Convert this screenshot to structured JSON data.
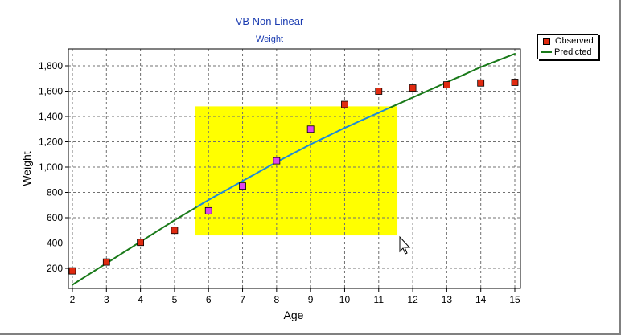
{
  "chart_data": {
    "type": "scatter",
    "title": "VB Non Linear",
    "subtitle": "Weight",
    "xlabel": "Age",
    "ylabel": "Weight",
    "xlim": [
      2,
      15
    ],
    "ylim": [
      100,
      1900
    ],
    "x_ticks": [
      2,
      3,
      4,
      5,
      6,
      7,
      8,
      9,
      10,
      11,
      12,
      13,
      14,
      15
    ],
    "y_ticks": [
      200,
      400,
      600,
      800,
      1000,
      1200,
      1400,
      1600,
      1800
    ],
    "y_tick_labels": [
      "200",
      "400",
      "600",
      "800",
      "1,000",
      "1,200",
      "1,400",
      "1,600",
      "1,800"
    ],
    "grid": true,
    "legend_position": "top-right",
    "series": [
      {
        "name": "Observed",
        "kind": "markers",
        "color": "#e02a10",
        "x": [
          2,
          3,
          4,
          5,
          6,
          7,
          8,
          9,
          10,
          11,
          12,
          13,
          14,
          15
        ],
        "y": [
          180,
          250,
          405,
          500,
          655,
          850,
          1050,
          1300,
          1495,
          1600,
          1625,
          1650,
          1665,
          1670
        ]
      },
      {
        "name": "Predicted",
        "kind": "line",
        "color": "#1a7a1a",
        "x": [
          2,
          3,
          4,
          5,
          6,
          7,
          8,
          9,
          10,
          11,
          12,
          13,
          14,
          15
        ],
        "y": [
          70,
          240,
          410,
          580,
          740,
          890,
          1040,
          1180,
          1310,
          1430,
          1550,
          1670,
          1790,
          1895
        ]
      }
    ],
    "selection": {
      "x_range": [
        5.6,
        11.55
      ],
      "y_range": [
        460,
        1480
      ],
      "fill": "#ffff00",
      "highlight_marker_color": "#dd44ee",
      "highlight_line_color": "#1e8ad8"
    },
    "gridline_color": "#707070",
    "axis_color": "#000000"
  }
}
